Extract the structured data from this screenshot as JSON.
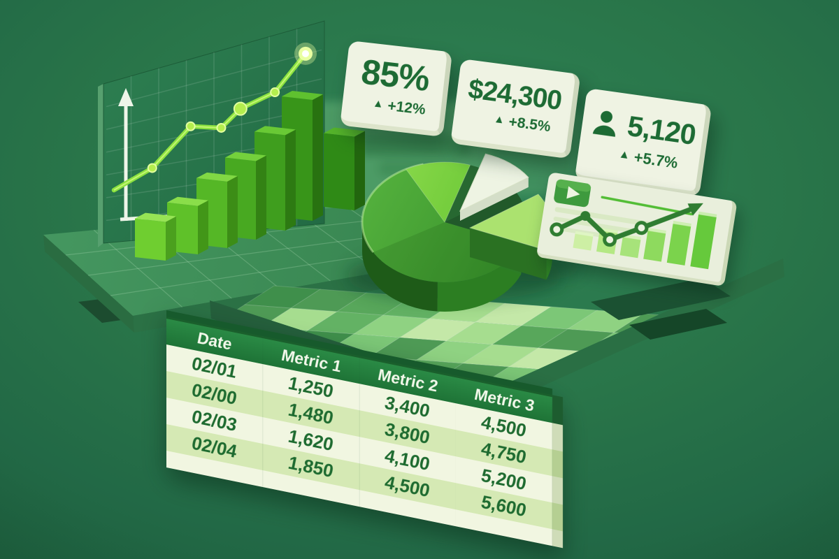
{
  "kpi_cards": [
    {
      "value": "85%",
      "delta_arrow": "▲",
      "delta": "+12%"
    },
    {
      "value": "$24,300",
      "delta_arrow": "▲",
      "delta": "+8.5%"
    },
    {
      "value": "5,120",
      "delta_arrow": "▲",
      "delta": "+5.7%",
      "icon": "person-icon"
    }
  ],
  "table": {
    "columns": [
      "Date",
      "Metric 1",
      "Metric 2",
      "Metric 3"
    ],
    "rows": [
      [
        "02/01",
        "1,250",
        "3,400",
        "4,500"
      ],
      [
        "02/00",
        "1,480",
        "3,800",
        "4,750"
      ],
      [
        "02/03",
        "1,620",
        "4,100",
        "5,200"
      ],
      [
        "02/04",
        "1,850",
        "4,500",
        "5,600"
      ]
    ]
  },
  "chart_data": [
    {
      "type": "line",
      "name": "panel-trend-line",
      "x_rel": [
        0,
        0.2,
        0.4,
        0.56,
        0.66,
        0.84,
        1.0
      ],
      "y_rel": [
        0.18,
        0.29,
        0.51,
        0.49,
        0.59,
        0.67,
        0.875
      ],
      "marker_radii": [
        0,
        6,
        6,
        6,
        9,
        6,
        11
      ],
      "axis_labels": "none",
      "line_color": "#8ce23f"
    },
    {
      "type": "bar",
      "name": "panel-rising-bars",
      "values_rel": [
        0.32,
        0.4,
        0.55,
        0.65,
        0.79,
        1.0,
        0.61
      ]
    },
    {
      "type": "pie",
      "name": "share-pie",
      "slices": [
        {
          "name": "main",
          "fraction": 0.61,
          "color": "#46a332",
          "exploded": false
        },
        {
          "name": "bright-top",
          "fraction": 0.13,
          "color": "#7fd444",
          "exploded": false
        },
        {
          "name": "white",
          "fraction": 0.1,
          "color": "#edf3e1",
          "exploded": true
        },
        {
          "name": "exploded-lime",
          "fraction": 0.16,
          "color": "#aae26e",
          "exploded": true
        }
      ]
    },
    {
      "type": "line",
      "name": "mini-panel-line",
      "x_rel": [
        0.03,
        0.19,
        0.36,
        0.54,
        0.83
      ],
      "y_rel": [
        0.23,
        0.52,
        0.2,
        0.47,
        0.91
      ],
      "marker_styles": [
        "ring",
        "solid",
        "ring",
        "ring",
        "arrow"
      ],
      "line_color": "#2f7d31"
    },
    {
      "type": "bar",
      "name": "mini-panel-bars",
      "values_rel": [
        0.28,
        0.4,
        0.35,
        0.52,
        0.7,
        0.92
      ]
    }
  ],
  "colors": {
    "background": "#27714a",
    "card_bg": "#eff3e3",
    "card_text": "#1d6b34",
    "table_header_bg": "#1f7c39",
    "table_header_text": "#f2f8ea",
    "table_row_light": "#f1f6e1",
    "table_row_alt": "#d5e9b4",
    "table_value_text": "#1e6b30",
    "accent_bright": "#8ce23f",
    "accent_dark": "#2f7d31",
    "pie_main": "#46a332",
    "pie_bright": "#7fd444",
    "pie_white": "#edf3e1",
    "pie_lime": "#aae26e"
  }
}
